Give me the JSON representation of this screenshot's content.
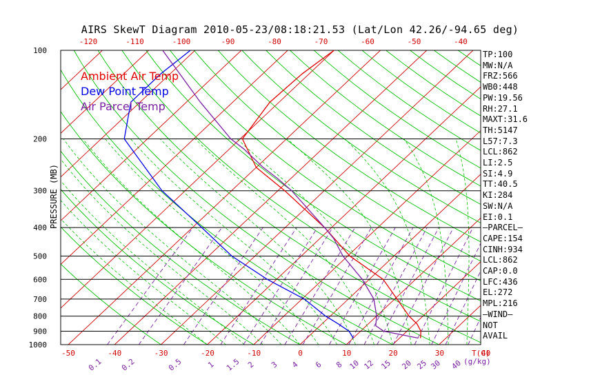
{
  "title": "AIRS SkewT Diagram 2010-05-23/08:18:21.53 (Lat/Lon 42.26/-94.65 deg)",
  "legend": [
    {
      "label": "Ambient Air Temp",
      "color": "#e00000"
    },
    {
      "label": "Dew Point Temp",
      "color": "#0000e0"
    },
    {
      "label": "Air Parcel Temp",
      "color": "#7a1fa2"
    }
  ],
  "indices": [
    "TP:100",
    "MW:N/A",
    "FRZ:566",
    "WB0:448",
    "PW:19.56",
    "RH:27.1",
    "MAXT:31.6",
    "TH:5147",
    "L57:7.3",
    "LCL:862",
    "LI:2.5",
    "SI:4.9",
    "TT:40.5",
    "KI:284",
    "SW:N/A",
    "EI:0.1",
    "—PARCEL—",
    "CAPE:154",
    "CINH:934",
    "LCL:862",
    "CAP:0.0",
    "LFC:436",
    "EL:272",
    "MPL:216",
    "—WIND—",
    "NOT",
    "AVAIL"
  ],
  "chart_data": {
    "type": "line",
    "title": "AIRS SkewT Diagram 2010-05-23/08:18:21.53 (Lat/Lon 42.26/-94.65 deg)",
    "ylabel": "PRESSURE (MB)",
    "xlabel": "T(C)",
    "y_scale": "log",
    "ylim": [
      1000,
      100
    ],
    "xlim": [
      -50,
      40
    ],
    "isobar_labels": [
      "100",
      "200",
      "300",
      "400",
      "500",
      "600",
      "700",
      "800",
      "900",
      "1000"
    ],
    "isobars": [
      100,
      200,
      300,
      400,
      500,
      600,
      700,
      800,
      900,
      1000
    ],
    "top_temp_ticks": [
      -120,
      -110,
      -100,
      -90,
      -80,
      -70,
      -60,
      -50,
      -40
    ],
    "bottom_temp_ticks": [
      -50,
      -40,
      -30,
      -20,
      -10,
      0,
      10,
      20,
      30,
      40
    ],
    "mixing_ratio_labels": [
      "0.1",
      "0.2",
      "0.5",
      "1",
      "1.5",
      "2",
      "3",
      "4",
      "6",
      "8",
      "10",
      "12",
      "15",
      "20",
      "25",
      "30",
      "40"
    ],
    "mixing_ratio_unit": "g/kg",
    "series": [
      {
        "name": "Ambient Air Temp",
        "color": "#e00000",
        "points": [
          [
            950,
            24.5
          ],
          [
            900,
            23.0
          ],
          [
            850,
            20.5
          ],
          [
            800,
            17.0
          ],
          [
            700,
            10.5
          ],
          [
            600,
            3.0
          ],
          [
            500,
            -9.5
          ],
          [
            400,
            -21.5
          ],
          [
            300,
            -38.5
          ],
          [
            250,
            -50.0
          ],
          [
            200,
            -59.5
          ],
          [
            150,
            -62.0
          ],
          [
            120,
            -61.5
          ],
          [
            100,
            -60.0
          ]
        ]
      },
      {
        "name": "Dew Point Temp",
        "color": "#0000e0",
        "points": [
          [
            950,
            10.0
          ],
          [
            900,
            7.5
          ],
          [
            850,
            3.5
          ],
          [
            800,
            -1.0
          ],
          [
            700,
            -9.5
          ],
          [
            600,
            -22.0
          ],
          [
            500,
            -35.0
          ],
          [
            400,
            -48.0
          ],
          [
            300,
            -65.0
          ],
          [
            200,
            -85.0
          ],
          [
            150,
            -92.0
          ],
          [
            120,
            -92.0
          ],
          [
            100,
            -91.0
          ]
        ]
      },
      {
        "name": "Air Parcel Temp",
        "color": "#7a1fa2",
        "points": [
          [
            950,
            24.0
          ],
          [
            900,
            15.0
          ],
          [
            862,
            12.0
          ],
          [
            800,
            10.0
          ],
          [
            700,
            5.5
          ],
          [
            600,
            -1.5
          ],
          [
            500,
            -11.0
          ],
          [
            436,
            -17.0
          ],
          [
            400,
            -21.5
          ],
          [
            300,
            -37.0
          ],
          [
            272,
            -43.0
          ],
          [
            250,
            -48.5
          ],
          [
            216,
            -57.0
          ],
          [
            200,
            -62.0
          ],
          [
            150,
            -77.0
          ],
          [
            100,
            -97.0
          ]
        ]
      }
    ]
  }
}
